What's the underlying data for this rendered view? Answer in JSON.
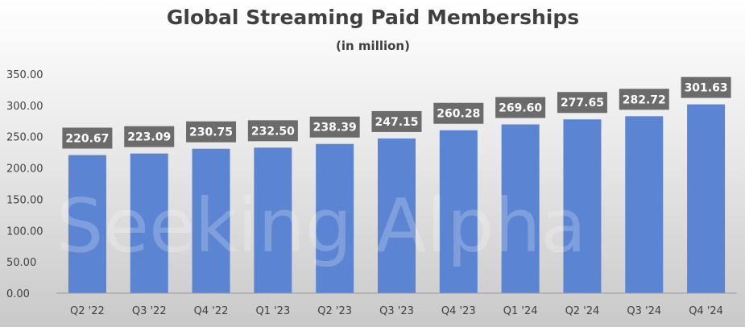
{
  "chart_data": {
    "type": "bar",
    "title": "Global Streaming Paid Memberships",
    "subtitle": "(in million)",
    "xlabel": "",
    "ylabel": "",
    "categories": [
      "Q2 '22",
      "Q3 '22",
      "Q4 '22",
      "Q1 '23",
      "Q2 '23",
      "Q3 '23",
      "Q4 '23",
      "Q1 '24",
      "Q2 '24",
      "Q3 '24",
      "Q4 '24"
    ],
    "series": [
      {
        "values": [
          220.67,
          223.09,
          230.75,
          232.5,
          238.39,
          247.15,
          260.28,
          269.6,
          277.65,
          282.72,
          301.63
        ]
      }
    ],
    "data_labels": [
      "220.67",
      "223.09",
      "230.75",
      "232.50",
      "238.39",
      "247.15",
      "260.28",
      "269.60",
      "277.65",
      "282.72",
      "301.63"
    ],
    "y_ticks": [
      "0.00",
      "50.00",
      "100.00",
      "150.00",
      "200.00",
      "250.00",
      "300.00",
      "350.00"
    ],
    "ylim": [
      0,
      350
    ],
    "grid": false,
    "legend": "none",
    "bar_color": "#5b84d2",
    "label_box_color": "#6b6b6b"
  },
  "watermark": "Seeking Alpha"
}
